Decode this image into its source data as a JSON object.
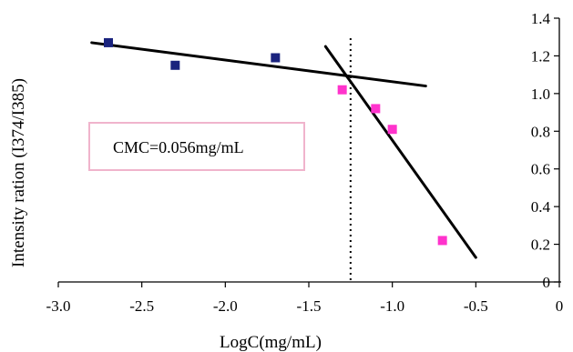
{
  "chart_data": {
    "type": "scatter",
    "xlabel": "LogC(mg/mL)",
    "ylabel": "Intensity ration (I374/I385)",
    "xlim": [
      -3.0,
      0
    ],
    "ylim": [
      0,
      1.4
    ],
    "x_ticks": [
      -3.0,
      -2.5,
      -2.0,
      -1.5,
      -1.0,
      -0.5,
      0
    ],
    "x_tick_labels": [
      "-3.0",
      "-2.5",
      "-2.0",
      "-1.5",
      "-1.0",
      "-0.5",
      "0"
    ],
    "y_ticks": [
      0,
      0.2,
      0.4,
      0.6,
      0.8,
      1.0,
      1.2,
      1.4
    ],
    "y_tick_labels": [
      "0",
      "0.2",
      "0.4",
      "0.6",
      "0.8",
      "1.0",
      "1.2",
      "1.4"
    ],
    "y_axis_position": "right",
    "grid": false,
    "series": [
      {
        "color": "#1a237e",
        "points": [
          {
            "x": -2.7,
            "y": 1.27
          },
          {
            "x": -2.3,
            "y": 1.15
          },
          {
            "x": -1.7,
            "y": 1.19
          }
        ]
      },
      {
        "color": "#ff33cc",
        "points": [
          {
            "x": -1.3,
            "y": 1.02
          },
          {
            "x": -1.1,
            "y": 0.92
          },
          {
            "x": -1.0,
            "y": 0.81
          },
          {
            "x": -0.7,
            "y": 0.22
          }
        ]
      }
    ],
    "fit_lines": [
      {
        "x": [
          -2.8,
          -0.8
        ],
        "y": [
          1.27,
          1.04
        ],
        "color": "#000000"
      },
      {
        "x": [
          -1.4,
          -0.5
        ],
        "y": [
          1.25,
          0.13
        ],
        "color": "#000000"
      }
    ],
    "reference_line": {
      "x": -1.25,
      "style": "dotted",
      "color": "#000000"
    },
    "annotations": [
      {
        "text": "CMC=0.056mg/mL"
      }
    ]
  }
}
